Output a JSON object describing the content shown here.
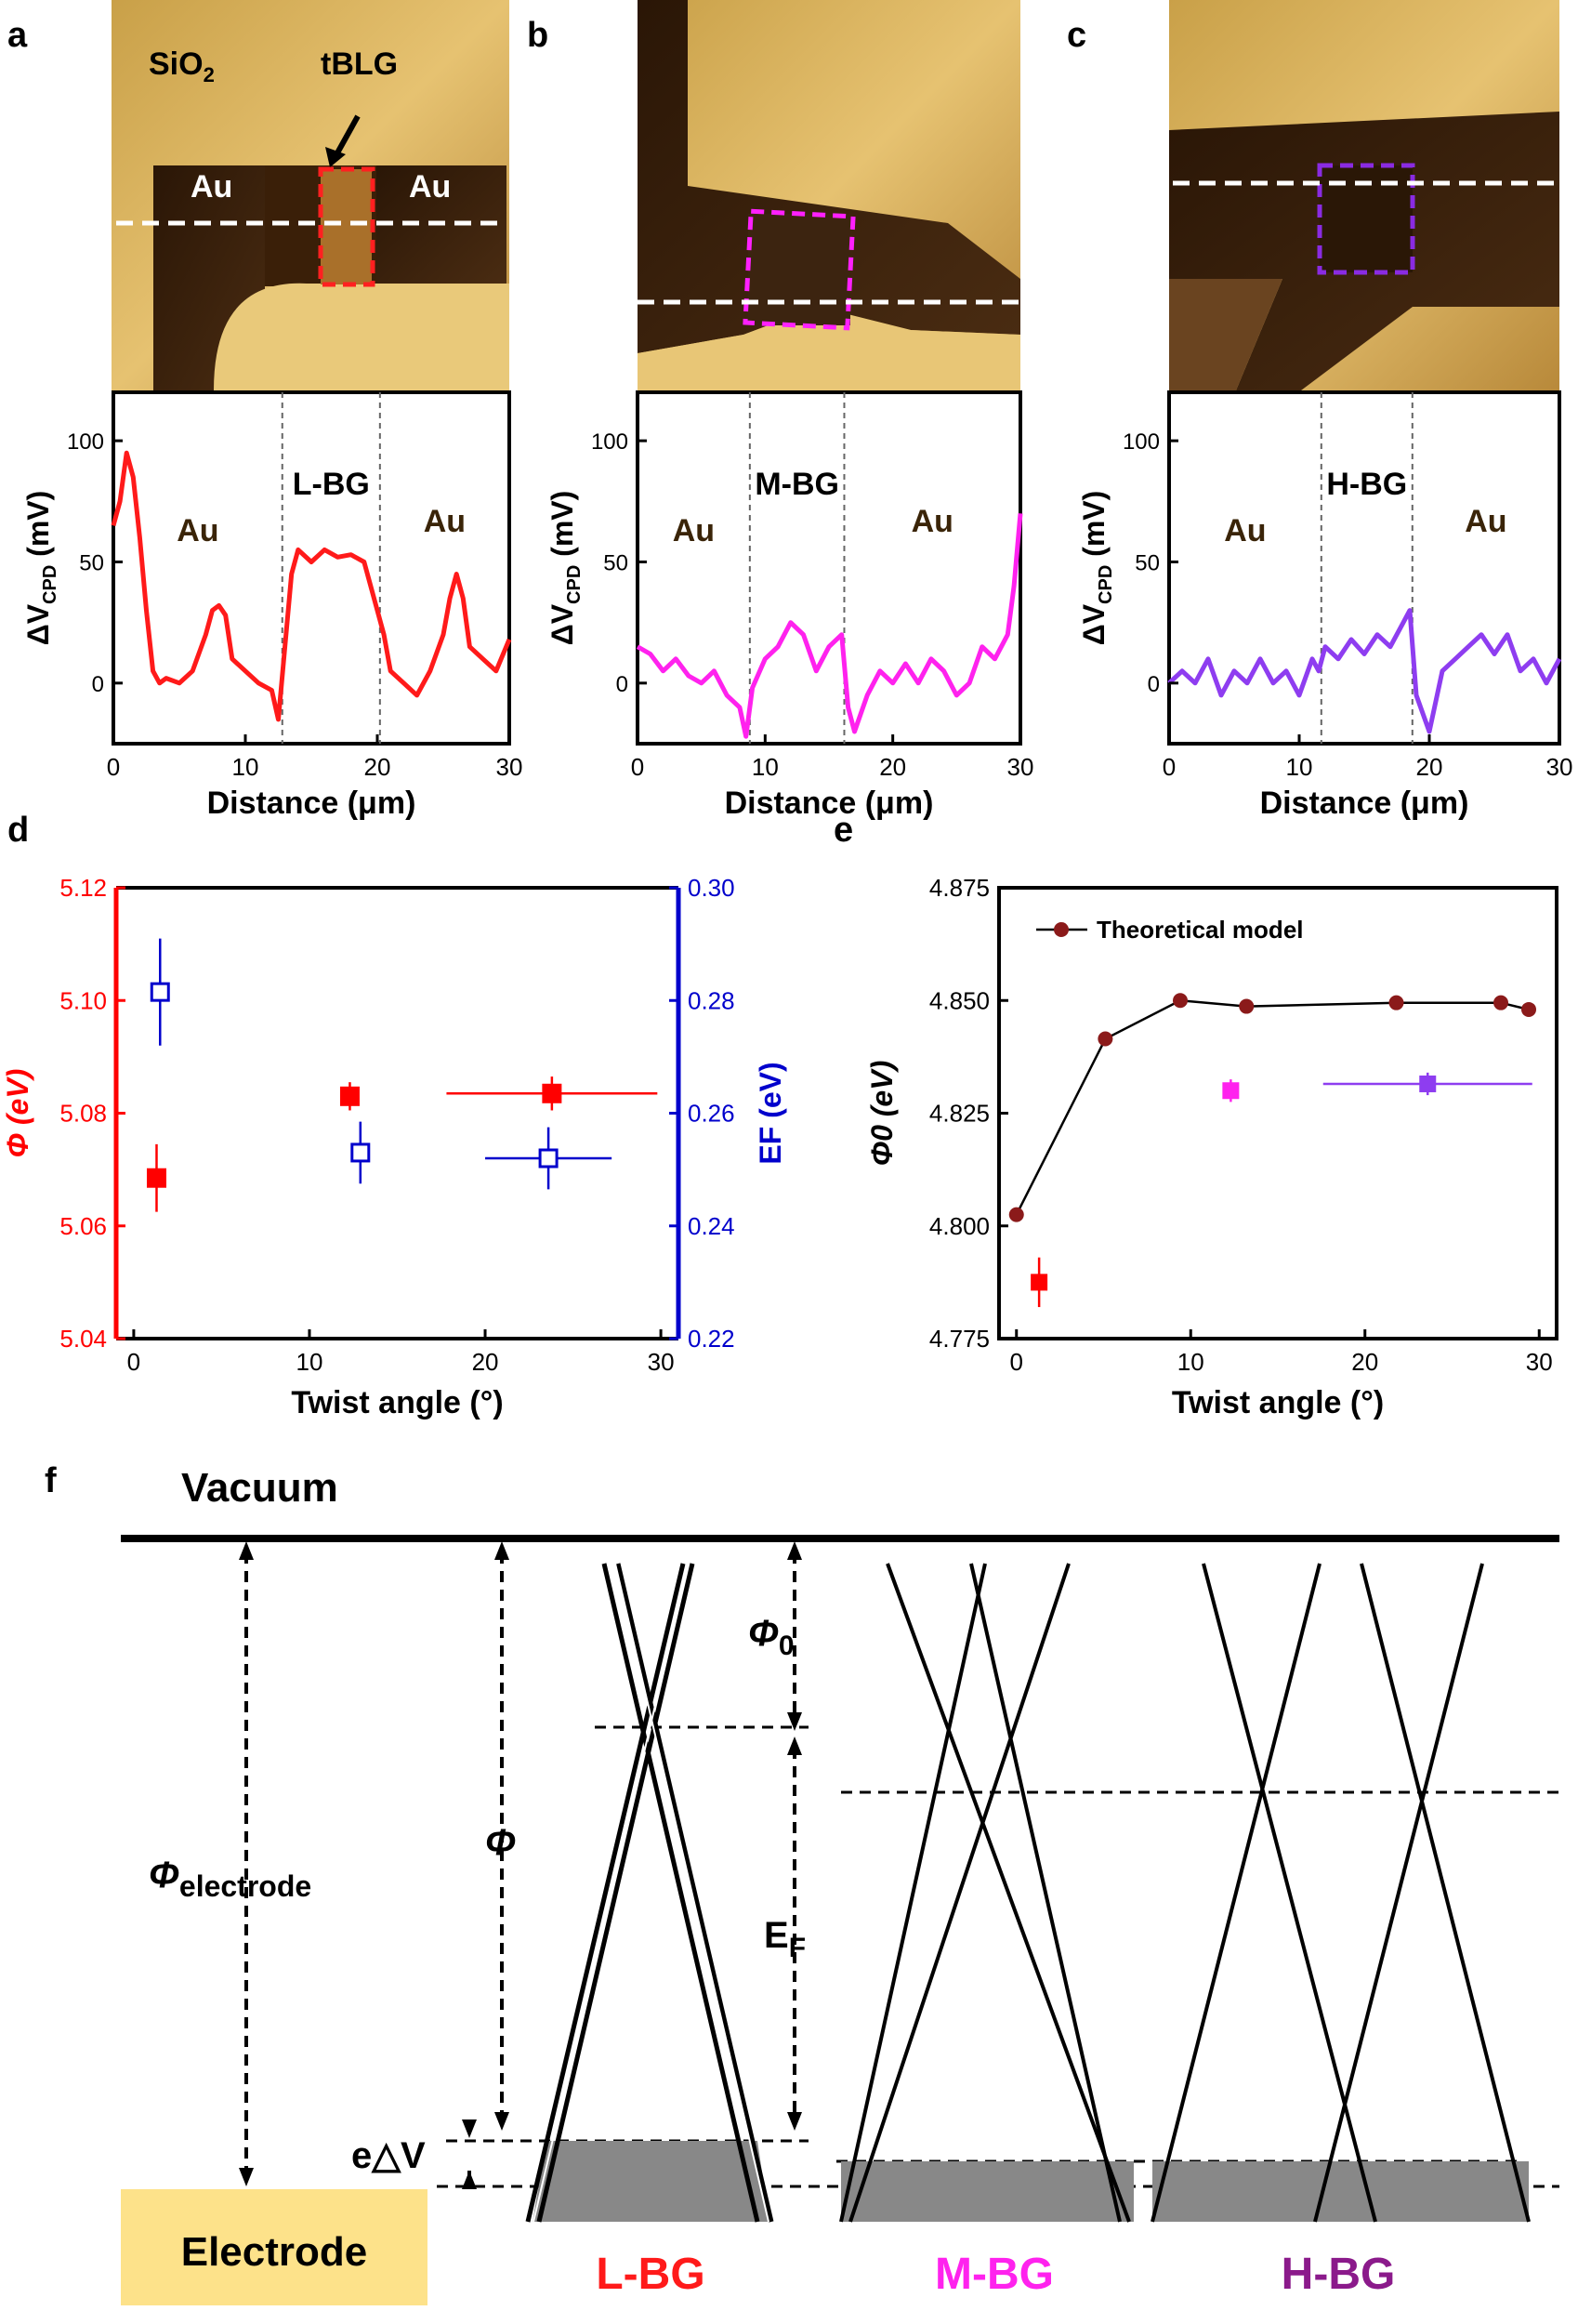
{
  "panel_letters": [
    "a",
    "b",
    "c",
    "d",
    "e",
    "f"
  ],
  "panel_a": {
    "labels": {
      "sio2_main": "SiO",
      "sio2_sub": "2",
      "tblg": "tBLG",
      "au_left": "Au",
      "au_right": "Au"
    },
    "outline_color": "#ff2020",
    "trace_color": "#ff1a1a",
    "region_labels": {
      "left": "Au",
      "center": "L-BG",
      "right": "Au"
    },
    "boundaries_um": [
      12.8,
      20.2
    ]
  },
  "panel_b": {
    "outline_color": "#ff20ff",
    "trace_color": "#ff22ee",
    "region_labels": {
      "left": "Au",
      "center": "M-BG",
      "right": "Au"
    },
    "boundaries_um": [
      8.8,
      16.2
    ]
  },
  "panel_c": {
    "outline_color": "#8a2be2",
    "trace_color": "#8e3df0",
    "region_labels": {
      "left": "Au",
      "center": "H-BG",
      "right": "Au"
    },
    "boundaries_um": [
      11.7,
      18.7
    ]
  },
  "profile_axes": {
    "ylabel_main": "ΔV",
    "ylabel_sub": "CPD",
    "ylabel_unit": " (mV)",
    "xlabel": "Distance (μm)",
    "yticks": [
      "0",
      "50",
      "100"
    ],
    "xticks": [
      "0",
      "10",
      "20",
      "30"
    ]
  },
  "chart_data": [
    {
      "type": "line",
      "panel": "a",
      "xlabel": "Distance (μm)",
      "ylabel": "ΔVCPD (mV)",
      "xlim": [
        0,
        30
      ],
      "ylim": [
        -25,
        120
      ],
      "x": [
        0,
        0.5,
        1,
        1.5,
        2,
        2.5,
        3,
        3.5,
        4,
        5,
        6,
        7,
        7.5,
        8,
        8.5,
        9,
        10,
        11,
        12,
        12.5,
        13,
        13.5,
        14,
        15,
        16,
        17,
        18,
        19,
        20,
        20.5,
        21,
        22,
        23,
        24,
        25,
        25.5,
        26,
        26.5,
        27,
        28,
        29,
        30
      ],
      "y": [
        65,
        75,
        95,
        85,
        60,
        30,
        5,
        0,
        2,
        0,
        5,
        20,
        30,
        32,
        28,
        10,
        5,
        0,
        -3,
        -15,
        15,
        45,
        55,
        50,
        55,
        52,
        53,
        50,
        30,
        20,
        5,
        0,
        -5,
        5,
        20,
        35,
        45,
        35,
        15,
        10,
        5,
        18
      ]
    },
    {
      "type": "line",
      "panel": "b",
      "xlabel": "Distance (μm)",
      "ylabel": "ΔVCPD (mV)",
      "xlim": [
        0,
        30
      ],
      "ylim": [
        -25,
        120
      ],
      "x": [
        0,
        1,
        2,
        3,
        4,
        5,
        6,
        7,
        8,
        8.5,
        9,
        10,
        11,
        12,
        13,
        14,
        15,
        16,
        16.5,
        17,
        18,
        19,
        20,
        21,
        22,
        23,
        24,
        25,
        26,
        27,
        28,
        29,
        29.5,
        30
      ],
      "y": [
        15,
        12,
        5,
        10,
        3,
        0,
        5,
        -5,
        -10,
        -22,
        -2,
        10,
        15,
        25,
        20,
        5,
        15,
        20,
        -10,
        -20,
        -5,
        5,
        0,
        8,
        0,
        10,
        5,
        -5,
        0,
        15,
        10,
        20,
        40,
        70
      ]
    },
    {
      "type": "line",
      "panel": "c",
      "xlabel": "Distance (μm)",
      "ylabel": "ΔVCPD (mV)",
      "xlim": [
        0,
        30
      ],
      "ylim": [
        -25,
        120
      ],
      "x": [
        0,
        1,
        2,
        3,
        4,
        5,
        6,
        7,
        8,
        9,
        10,
        11,
        11.5,
        12,
        13,
        14,
        15,
        16,
        17,
        18,
        18.5,
        19,
        20,
        21,
        22,
        23,
        24,
        25,
        26,
        27,
        28,
        29,
        30
      ],
      "y": [
        0,
        5,
        0,
        10,
        -5,
        5,
        0,
        10,
        0,
        5,
        -5,
        10,
        5,
        15,
        10,
        18,
        12,
        20,
        15,
        25,
        30,
        -5,
        -20,
        5,
        10,
        15,
        20,
        12,
        20,
        5,
        10,
        0,
        10
      ]
    },
    {
      "type": "scatter",
      "panel": "d",
      "xlabel": "Twist angle (°)",
      "ylabel_left": "Φ (eV)",
      "ylabel_right": "EF (eV)",
      "xlim": [
        -1,
        31
      ],
      "ylim_left": [
        5.04,
        5.12
      ],
      "ylim_right": [
        0.22,
        0.3
      ],
      "xticks": [
        "0",
        "10",
        "20",
        "30"
      ],
      "yticks_left": [
        "5.04",
        "5.06",
        "5.08",
        "5.10",
        "5.12"
      ],
      "yticks_right": [
        "0.22",
        "0.24",
        "0.26",
        "0.28",
        "0.30"
      ],
      "series": [
        {
          "axis": "left",
          "color": "#ff0000",
          "filled": true,
          "points": [
            {
              "x": 1.3,
              "y": 5.0685,
              "xerr": 0.5,
              "yerr": 0.006
            },
            {
              "x": 12.3,
              "y": 5.083,
              "xerr": 0.5,
              "yerr": 0.0025
            },
            {
              "x": 23.8,
              "y": 5.0835,
              "xerr": 6,
              "yerr": 0.003
            }
          ]
        },
        {
          "axis": "right",
          "color": "#0000cc",
          "filled": false,
          "points": [
            {
              "x": 1.5,
              "y": 0.2815,
              "xerr": 0.3,
              "yerr": 0.0095
            },
            {
              "x": 12.9,
              "y": 0.253,
              "xerr": 0.4,
              "yerr": 0.0055
            },
            {
              "x": 23.6,
              "y": 0.252,
              "xerr": 3.6,
              "yerr": 0.0055
            }
          ]
        }
      ]
    },
    {
      "type": "scatter",
      "panel": "e",
      "xlabel": "Twist angle (°)",
      "ylabel": "Φ0 (eV)",
      "xlim": [
        -1,
        31
      ],
      "ylim": [
        4.775,
        4.875
      ],
      "xticks": [
        "0",
        "10",
        "20",
        "30"
      ],
      "yticks": [
        "4.775",
        "4.800",
        "4.825",
        "4.850",
        "4.875"
      ],
      "series": [
        {
          "name": "Theoretical model",
          "color": "#8b1a1a",
          "line": true,
          "points": [
            {
              "x": 0,
              "y": 4.8025
            },
            {
              "x": 5.1,
              "y": 4.8415
            },
            {
              "x": 9.4,
              "y": 4.85
            },
            {
              "x": 13.2,
              "y": 4.8487
            },
            {
              "x": 21.8,
              "y": 4.8495
            },
            {
              "x": 27.8,
              "y": 4.8495
            },
            {
              "x": 29.4,
              "y": 4.848
            }
          ]
        },
        {
          "color": "#ff0000",
          "points": [
            {
              "x": 1.3,
              "y": 4.7875,
              "xerr": 0.4,
              "yerr": 0.0055
            }
          ]
        },
        {
          "color": "#ff22ee",
          "points": [
            {
              "x": 12.3,
              "y": 4.83,
              "xerr": 0.4,
              "yerr": 0.0025
            }
          ]
        },
        {
          "color": "#8e3df0",
          "points": [
            {
              "x": 23.6,
              "y": 4.8315,
              "xerr": 6,
              "yerr": 0.0025
            }
          ]
        }
      ]
    }
  ],
  "diagram_f": {
    "vacuum": "Vacuum",
    "electrode": "Electrode",
    "electrode_color": "#fde28a",
    "phi0_main": "Φ",
    "phi0_sub": "0",
    "phi": "Φ",
    "phi_elec_main": "Φ",
    "phi_elec_sub": "electrode",
    "ef_main": "E",
    "ef_sub": "F",
    "edv": "e△V",
    "labels": [
      {
        "text": "L-BG",
        "color": "#ff1a1a"
      },
      {
        "text": "M-BG",
        "color": "#ff22ee"
      },
      {
        "text": "H-BG",
        "color": "#8b1a8b"
      }
    ]
  }
}
